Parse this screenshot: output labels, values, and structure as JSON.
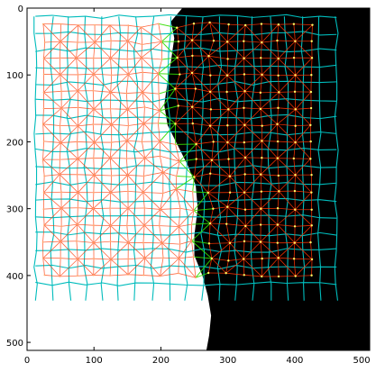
{
  "chart_data": {
    "type": "scatter",
    "title": "",
    "xlabel": "",
    "ylabel": "",
    "xlim": [
      0,
      512
    ],
    "ylim": [
      512,
      0
    ],
    "x_ticks": [
      0,
      100,
      200,
      300,
      400,
      500
    ],
    "y_ticks": [
      0,
      100,
      200,
      300,
      400,
      500
    ],
    "grid": false,
    "colors": {
      "background_left": "#ffffff",
      "background_right": "#000000",
      "cell_boundaries": "#00bcbc",
      "mesh_edges": "#ff3300",
      "interface_edges": "#33dd00",
      "points": "#ffff66",
      "axis": "#000000"
    },
    "images": [
      {
        "name": "segmented-image",
        "description_free": true
      }
    ],
    "mesh": {
      "x_start": 25,
      "x_step": 25,
      "x_count": 17,
      "y_start": 25,
      "y_step": 25,
      "y_count": 16
    },
    "interface_curve": [
      [
        232,
        0
      ],
      [
        215,
        20
      ],
      [
        220,
        45
      ],
      [
        215,
        80
      ],
      [
        210,
        110
      ],
      [
        205,
        145
      ],
      [
        210,
        175
      ],
      [
        225,
        205
      ],
      [
        240,
        235
      ],
      [
        252,
        265
      ],
      [
        255,
        300
      ],
      [
        250,
        340
      ],
      [
        250,
        370
      ],
      [
        262,
        400
      ],
      [
        270,
        430
      ],
      [
        275,
        460
      ],
      [
        272,
        490
      ],
      [
        268,
        512
      ]
    ]
  }
}
